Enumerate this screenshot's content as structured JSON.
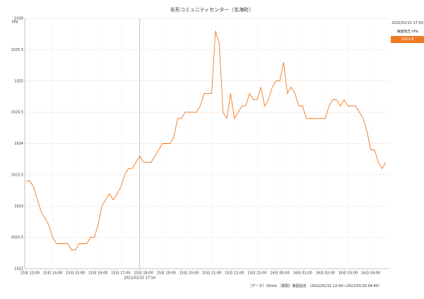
{
  "chart_data": {
    "type": "line",
    "title": "牟形コミュニティセンター（玄海町）",
    "y_unit": "hPa",
    "categories": [
      null,
      "15日 13:00",
      null,
      null,
      null,
      null,
      null,
      "15日 14:00",
      null,
      null,
      null,
      null,
      null,
      "15日 15:00",
      null,
      null,
      null,
      null,
      null,
      "15日 16:00",
      null,
      null,
      null,
      null,
      null,
      "15日 17:00",
      null,
      null,
      null,
      null,
      null,
      "15日 18:00",
      null,
      null,
      null,
      null,
      null,
      "15日 19:00",
      null,
      null,
      null,
      null,
      null,
      "15日 20:00",
      null,
      null,
      null,
      null,
      null,
      "15日 21:00",
      null,
      null,
      null,
      null,
      null,
      "15日 22:00",
      null,
      null,
      null,
      null,
      null,
      "15日 23:00",
      null,
      null,
      null,
      null,
      null,
      "16日 00:00",
      null,
      null,
      null,
      null,
      null,
      "16日 01:00",
      null,
      null,
      null,
      null,
      null,
      "16日 02:00",
      null,
      null,
      null,
      null,
      null,
      "16日 03:00",
      null,
      null,
      null,
      null,
      null,
      "16日 04:00",
      null,
      null,
      null,
      null
    ],
    "series": [
      {
        "name": "海面気圧 hPa",
        "color": "#f07a22",
        "values": [
          1023.4,
          1023.4,
          1023.3,
          1023.1,
          1022.9,
          1022.8,
          1022.7,
          1022.5,
          1022.4,
          1022.4,
          1022.4,
          1022.4,
          1022.3,
          1022.3,
          1022.4,
          1022.4,
          1022.4,
          1022.5,
          1022.5,
          1022.7,
          1023.0,
          1023.1,
          1023.2,
          1023.1,
          1023.2,
          1023.3,
          1023.5,
          1023.6,
          1023.6,
          1023.7,
          1023.8,
          1023.7,
          1023.7,
          1023.7,
          1023.8,
          1023.9,
          1024.0,
          1024.0,
          1024.0,
          1024.1,
          1024.4,
          1024.4,
          1024.5,
          1024.5,
          1024.5,
          1024.5,
          1024.6,
          1024.8,
          1024.8,
          1024.8,
          1025.8,
          1025.6,
          1024.5,
          1024.4,
          1024.8,
          1024.4,
          1024.5,
          1024.6,
          1024.6,
          1024.8,
          1024.7,
          1024.7,
          1024.9,
          1024.6,
          1024.7,
          1024.9,
          1025.0,
          1025.0,
          1025.3,
          1024.8,
          1024.9,
          1024.8,
          1024.6,
          1024.6,
          1024.4,
          1024.4,
          1024.4,
          1024.4,
          1024.4,
          1024.4,
          1024.6,
          1024.7,
          1024.7,
          1024.6,
          1024.7,
          1024.6,
          1024.6,
          1024.6,
          1024.5,
          1024.4,
          1024.2,
          1023.9,
          1023.9,
          1023.7,
          1023.6,
          1023.7
        ]
      }
    ],
    "ylim": [
      1022,
      1026
    ],
    "yticks": [
      1022,
      1022.5,
      1023,
      1023.5,
      1024,
      1024.5,
      1025,
      1025.5,
      1026
    ],
    "grid": true,
    "selected": {
      "time": "2022/01/15 17:50",
      "label": "海面気圧 hPa",
      "value": 1023.8,
      "value_label": "1023.8"
    },
    "footer": [
      "［データ］10min",
      "［期間］範囲指定",
      "（2022/01/15 12:50〜2022/01/16 04:40）"
    ]
  }
}
